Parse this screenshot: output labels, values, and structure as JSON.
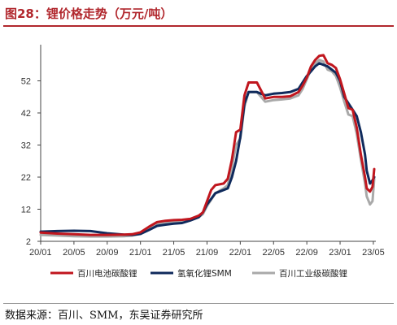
{
  "title": "图28：锂价格走势（万元/吨）",
  "source": "数据来源：百川、SMM，东吴证券研究所",
  "chart_data": {
    "type": "line",
    "ylim": [
      2,
      62
    ],
    "yticks": [
      2,
      12,
      22,
      32,
      42,
      52
    ],
    "xlim": [
      0,
      40.3
    ],
    "xtick_labels": [
      "20/01",
      "20/05",
      "20/09",
      "21/01",
      "21/05",
      "21/09",
      "22/01",
      "22/05",
      "22/09",
      "23/01",
      "23/05"
    ],
    "xtick_positions": [
      0,
      4,
      8,
      12,
      16,
      20,
      24,
      28,
      32,
      36,
      40
    ],
    "grid": false,
    "legend_position": "bottom",
    "series": [
      {
        "name": "百川电池碳酸锂",
        "color": "#c0161e",
        "x": [
          0,
          2,
          4,
          6,
          8,
          10,
          11,
          12,
          13,
          14,
          15,
          16,
          17,
          18,
          19,
          19.5,
          20,
          20.5,
          21,
          22,
          22.5,
          23,
          23.5,
          24,
          24.5,
          25,
          26,
          27,
          28,
          29,
          30,
          31,
          31.5,
          32,
          32.5,
          33,
          33.5,
          34,
          34.5,
          35,
          35.5,
          36,
          36.5,
          37,
          37.5,
          38,
          38.5,
          39,
          39.2,
          39.6,
          39.9,
          40.1
        ],
        "values": [
          4.7,
          4.4,
          4.2,
          4.0,
          4.0,
          4.1,
          4.2,
          4.8,
          6.5,
          8.0,
          8.4,
          8.6,
          8.7,
          9.0,
          10.0,
          11.0,
          14.5,
          18.0,
          19.5,
          20.0,
          21.5,
          27.5,
          36.0,
          36.8,
          47.5,
          51.5,
          51.5,
          46.5,
          47.0,
          47.0,
          47.2,
          48.5,
          50.5,
          53.0,
          56.5,
          58.5,
          59.8,
          60.0,
          57.5,
          57.0,
          56.0,
          52.5,
          48.0,
          43.5,
          43.0,
          37.5,
          29.0,
          22.0,
          18.5,
          17.5,
          19.0,
          24.5
        ]
      },
      {
        "name": "氢氧化锂SMM",
        "color": "#0f2a5c",
        "x": [
          0,
          2,
          4,
          6,
          8,
          10,
          11,
          12,
          13,
          14,
          15,
          16,
          17,
          18,
          19,
          19.5,
          20,
          21,
          22,
          22.5,
          23,
          23.5,
          24,
          24.5,
          25,
          26,
          27,
          28,
          29,
          30,
          31,
          31.5,
          32,
          32.5,
          33,
          33.5,
          34,
          34.5,
          35,
          35.5,
          36,
          36.5,
          37,
          37.5,
          38,
          38.5,
          39,
          39.2,
          39.6,
          39.9,
          40.1
        ],
        "values": [
          5.0,
          5.2,
          5.3,
          5.2,
          4.5,
          4.1,
          4.0,
          4.3,
          5.5,
          6.8,
          7.2,
          7.5,
          7.7,
          8.5,
          9.5,
          11.0,
          13.5,
          17.0,
          18.0,
          18.5,
          22.0,
          27.0,
          34.5,
          45.0,
          48.5,
          48.5,
          47.5,
          48.0,
          48.2,
          48.5,
          49.5,
          51.5,
          53.5,
          55.0,
          56.5,
          57.5,
          57.0,
          56.5,
          55.5,
          54.5,
          52.0,
          47.0,
          45.0,
          43.0,
          41.0,
          36.0,
          29.0,
          24.0,
          20.0,
          21.0,
          22.0
        ]
      },
      {
        "name": "百川工业级碳酸锂",
        "color": "#a9a9a9",
        "x": [
          0,
          2,
          4,
          6,
          8,
          10,
          11,
          12,
          13,
          14,
          15,
          16,
          17,
          18,
          19,
          19.5,
          20,
          21,
          22,
          22.5,
          23,
          23.5,
          24,
          24.5,
          25,
          26,
          27,
          28,
          29,
          30,
          31,
          31.5,
          32,
          32.5,
          33,
          33.5,
          34,
          34.5,
          35,
          35.5,
          36,
          36.5,
          37,
          37.5,
          38,
          38.5,
          39,
          39.2,
          39.6,
          39.9,
          40.1
        ],
        "values": [
          4.0,
          3.8,
          3.6,
          3.5,
          3.5,
          3.6,
          3.8,
          4.3,
          5.8,
          7.5,
          7.9,
          8.1,
          8.3,
          8.6,
          9.5,
          10.5,
          13.0,
          17.0,
          18.5,
          19.5,
          25.0,
          32.0,
          34.0,
          44.0,
          48.5,
          48.5,
          45.5,
          46.0,
          46.2,
          46.5,
          47.5,
          49.5,
          52.5,
          55.5,
          57.5,
          58.5,
          58.0,
          55.5,
          55.0,
          53.5,
          50.0,
          45.5,
          41.5,
          41.0,
          35.5,
          27.5,
          20.0,
          16.0,
          13.5,
          14.5,
          21.5
        ]
      }
    ]
  }
}
